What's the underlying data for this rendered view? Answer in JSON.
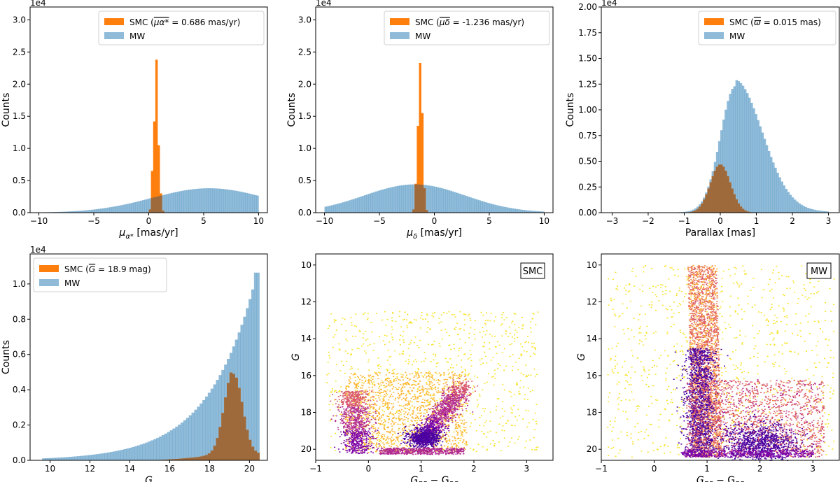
{
  "colors": {
    "smc": "#ff7f0e",
    "mw": "#1f77b4",
    "overlap": "#9e6a3c"
  },
  "chart_data": [
    {
      "type": "histogram",
      "id": "pmra",
      "xlabel_pre": "μ",
      "xlabel_sub": "α*",
      "xlabel_post": " [mas/yr]",
      "ylabel": "Counts",
      "offset_label": "1e4",
      "xlim": [
        -10.8,
        10.8
      ],
      "ylim": [
        0,
        3.2
      ],
      "xticks": [
        -10,
        -5,
        0,
        5,
        10
      ],
      "xtick_labels": [
        "−10",
        "−5",
        "0",
        "5",
        "10"
      ],
      "yticks": [
        0,
        0.5,
        1.0,
        1.5,
        2.0,
        2.5,
        3.0
      ],
      "ytick_labels": [
        "0.0",
        "0.5",
        "1.0",
        "1.5",
        "2.0",
        "2.5",
        "3.0"
      ],
      "legend_position": "top-right",
      "legend": [
        {
          "series": "SMC",
          "pre": "SMC (",
          "mean": "μα*",
          "post": " = 0.686 mas/yr)"
        },
        {
          "series": "MW",
          "pre": "MW",
          "mean": "",
          "post": ""
        }
      ],
      "series": [
        {
          "name": "MW",
          "kind": "gaussian",
          "range": [
            -10,
            10
          ],
          "bins": 100,
          "mu": 5.5,
          "sigma": 5.2,
          "peak": 0.38
        },
        {
          "name": "SMC",
          "kind": "points",
          "x": [
            0.1,
            0.3,
            0.5,
            0.7,
            0.9,
            1.1,
            1.3
          ],
          "y": [
            0.05,
            0.65,
            1.42,
            2.38,
            1.05,
            0.3,
            0.03
          ],
          "width": 0.2
        }
      ]
    },
    {
      "type": "histogram",
      "id": "pmdec",
      "xlabel_pre": "μ",
      "xlabel_sub": "δ",
      "xlabel_post": " [mas/yr]",
      "ylabel": "Counts",
      "offset_label": "1e4",
      "xlim": [
        -10.8,
        10.8
      ],
      "ylim": [
        0,
        3.2
      ],
      "xticks": [
        -10,
        -5,
        0,
        5,
        10
      ],
      "xtick_labels": [
        "−10",
        "−5",
        "0",
        "5",
        "10"
      ],
      "yticks": [
        0,
        0.5,
        1.0,
        1.5,
        2.0,
        2.5,
        3.0
      ],
      "ytick_labels": [
        "0.0",
        "0.5",
        "1.0",
        "1.5",
        "2.0",
        "2.5",
        "3.0"
      ],
      "legend_position": "top-right",
      "legend": [
        {
          "series": "SMC",
          "pre": "SMC (",
          "mean": "μδ",
          "post": " = -1.236 mas/yr)"
        },
        {
          "series": "MW",
          "pre": "MW",
          "mean": "",
          "post": ""
        }
      ],
      "series": [
        {
          "name": "MW",
          "kind": "gaussian",
          "range": [
            -10,
            10
          ],
          "bins": 100,
          "mu": -1.8,
          "sigma": 4.6,
          "peak": 0.44
        },
        {
          "name": "SMC",
          "kind": "points",
          "x": [
            -1.9,
            -1.7,
            -1.5,
            -1.3,
            -1.1,
            -0.9,
            -0.7
          ],
          "y": [
            0.05,
            0.45,
            1.35,
            2.33,
            1.55,
            0.38,
            0.04
          ],
          "width": 0.2
        }
      ]
    },
    {
      "type": "histogram",
      "id": "parallax",
      "xlabel_pre": "Parallax [mas]",
      "xlabel_sub": "",
      "xlabel_post": "",
      "ylabel": "Counts",
      "offset_label": "1e4",
      "xlim": [
        -3.3,
        3.3
      ],
      "ylim": [
        0,
        2.0
      ],
      "xticks": [
        -3,
        -2,
        -1,
        0,
        1,
        2,
        3
      ],
      "xtick_labels": [
        "−3",
        "−2",
        "−1",
        "0",
        "1",
        "2",
        "3"
      ],
      "yticks": [
        0,
        0.25,
        0.5,
        0.75,
        1.0,
        1.25,
        1.5,
        1.75,
        2.0
      ],
      "ytick_labels": [
        "0.00",
        "0.25",
        "0.50",
        "0.75",
        "1.00",
        "1.25",
        "1.50",
        "1.75",
        "2.00"
      ],
      "legend_position": "top-right",
      "legend": [
        {
          "series": "SMC",
          "pre": "SMC (",
          "mean": "ϖ",
          "post": " = 0.015 mas)"
        },
        {
          "series": "MW",
          "pre": "MW",
          "mean": "",
          "post": ""
        }
      ],
      "series": [
        {
          "name": "MW",
          "kind": "asym",
          "range": [
            -3,
            3
          ],
          "bins": 100,
          "mu": 0.42,
          "sigma_left": 0.42,
          "sigma_right": 0.75,
          "peak": 1.22,
          "tail": 0.012
        },
        {
          "name": "SMC",
          "kind": "gaussian",
          "range": [
            -1.5,
            1.5
          ],
          "bins": 50,
          "mu": 0.0,
          "sigma": 0.28,
          "peak": 0.47
        }
      ]
    },
    {
      "type": "histogram",
      "id": "gmag",
      "xlabel_pre": "G",
      "xlabel_sub": "",
      "xlabel_post": "",
      "ylabel": "Counts",
      "offset_label": "1e4",
      "xlim": [
        9.0,
        20.9
      ],
      "ylim": [
        0,
        1.17
      ],
      "xticks": [
        10,
        12,
        14,
        16,
        18,
        20
      ],
      "xtick_labels": [
        "10",
        "12",
        "14",
        "16",
        "18",
        "20"
      ],
      "yticks": [
        0,
        0.2,
        0.4,
        0.6,
        0.8,
        1.0
      ],
      "ytick_labels": [
        "0.0",
        "0.2",
        "0.4",
        "0.6",
        "0.8",
        "1.0"
      ],
      "legend_position": "top-left",
      "legend": [
        {
          "series": "SMC",
          "pre": "SMC (",
          "mean": "G",
          "post": " = 18.9 mag)"
        },
        {
          "series": "MW",
          "pre": "MW",
          "mean": "",
          "post": ""
        }
      ],
      "series": [
        {
          "name": "MW",
          "kind": "exp",
          "range": [
            9.6,
            20.5
          ],
          "bins": 80,
          "top": 1.12,
          "scale": 2.35
        },
        {
          "name": "SMC",
          "kind": "smcg",
          "range": [
            9.6,
            20.5
          ],
          "bins": 80,
          "mu": 19.2,
          "sigma": 0.45,
          "peak": 0.47,
          "floor_top": 0.05
        }
      ]
    },
    {
      "type": "scatter",
      "id": "cmd-smc",
      "xlabel_pre": "G",
      "xlabel_sub": "BP",
      "xlabel_post": " − G",
      "xlabel_sub2": "RP",
      "ylabel": "G",
      "box_label": "SMC",
      "inverted_y": true,
      "xlim": [
        -1.0,
        3.5
      ],
      "ylim": [
        9.4,
        20.6
      ],
      "xticks": [
        -1,
        0,
        1,
        2,
        3
      ],
      "xtick_labels": [
        "−1",
        "0",
        "1",
        "2",
        "3"
      ],
      "yticks": [
        10,
        12,
        14,
        16,
        18,
        20
      ],
      "ytick_labels": [
        "10",
        "12",
        "14",
        "16",
        "18",
        "20"
      ],
      "colormap": "plasma"
    },
    {
      "type": "scatter",
      "id": "cmd-mw",
      "xlabel_pre": "G",
      "xlabel_sub": "BP",
      "xlabel_post": " − G",
      "xlabel_sub2": "RP",
      "ylabel": "G",
      "box_label": "MW",
      "inverted_y": true,
      "xlim": [
        -1.0,
        3.5
      ],
      "ylim": [
        9.4,
        20.6
      ],
      "xticks": [
        -1,
        0,
        1,
        2,
        3
      ],
      "xtick_labels": [
        "−1",
        "0",
        "1",
        "2",
        "3"
      ],
      "yticks": [
        10,
        12,
        14,
        16,
        18,
        20
      ],
      "ytick_labels": [
        "10",
        "12",
        "14",
        "16",
        "18",
        "20"
      ],
      "colormap": "plasma"
    }
  ]
}
